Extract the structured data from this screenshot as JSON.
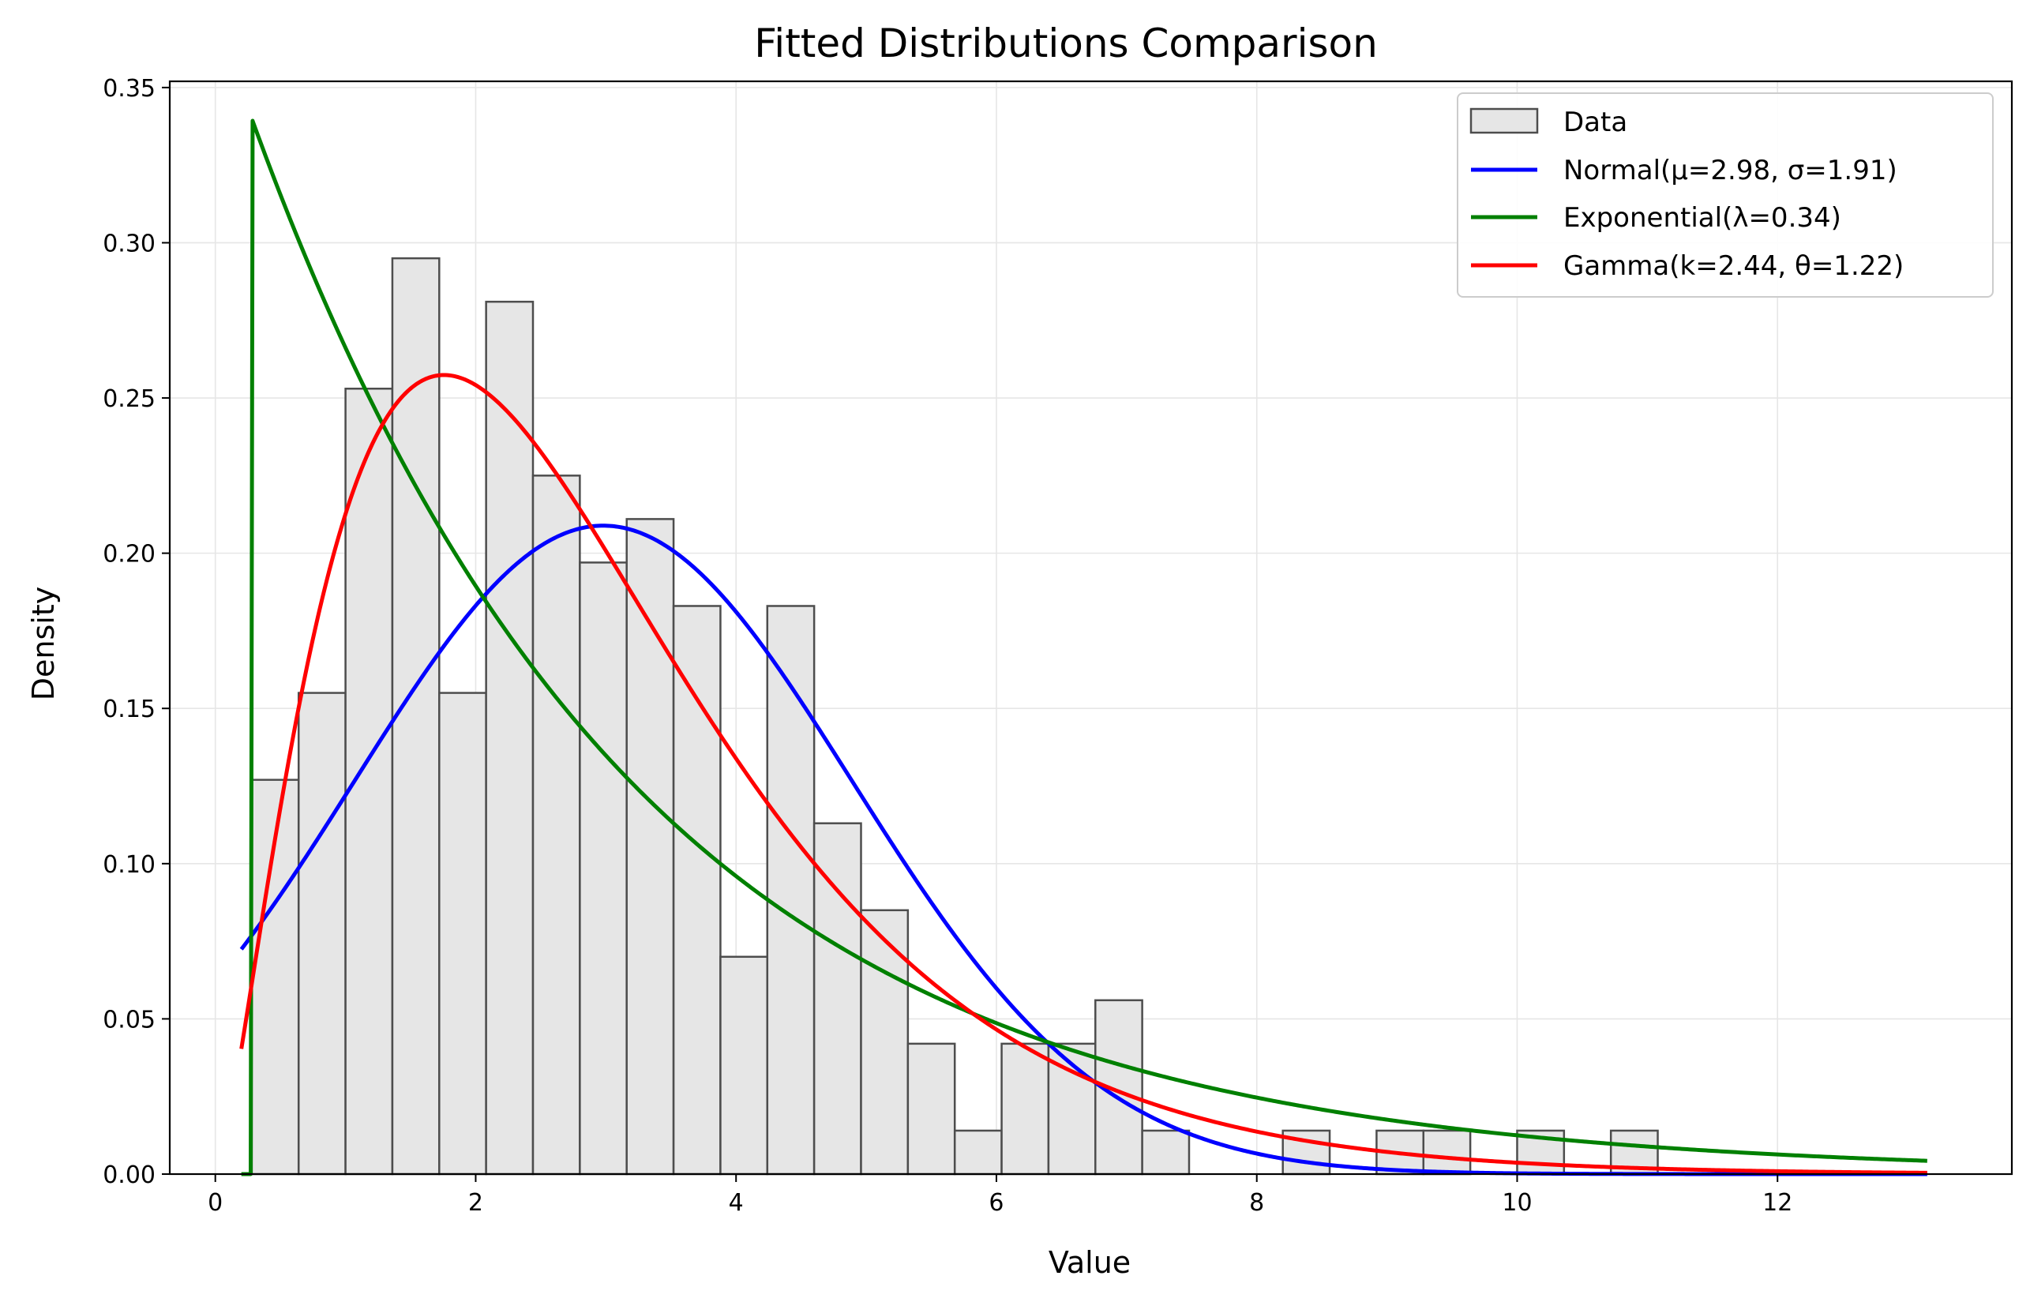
{
  "chart_data": {
    "type": "histogram",
    "title": "Fitted Distributions Comparison",
    "xlabel": "Value",
    "ylabel": "Density",
    "xlim": [
      -0.35,
      13.8
    ],
    "ylim": [
      0,
      0.352
    ],
    "x_ticks": [
      0,
      2,
      4,
      6,
      8,
      10,
      12
    ],
    "y_ticks": [
      0.0,
      0.05,
      0.1,
      0.15,
      0.2,
      0.25,
      0.3,
      0.35
    ],
    "x_tick_labels": [
      "0",
      "2",
      "4",
      "6",
      "8",
      "10",
      "12"
    ],
    "y_tick_labels": [
      "0.00",
      "0.05",
      "0.10",
      "0.15",
      "0.20",
      "0.25",
      "0.30",
      "0.35"
    ],
    "grid": true,
    "legend_position": "top-right",
    "colors": {
      "bar_fill": "#e6e6e6",
      "bar_edge": "#4d4d4d",
      "normal": "#0000ff",
      "exponential": "#008000",
      "gamma": "#ff0000",
      "grid": "#e6e6e6"
    },
    "histogram": {
      "name": "Data",
      "bin_width": 0.36,
      "bin_starts": [
        0.28,
        0.64,
        1.0,
        1.36,
        1.72,
        2.08,
        2.44,
        2.8,
        3.16,
        3.52,
        3.88,
        4.24,
        4.6,
        4.96,
        5.32,
        5.68,
        6.04,
        6.4,
        6.76,
        7.12,
        7.48,
        7.84,
        8.2,
        8.56,
        8.92,
        9.28,
        9.64,
        10.0,
        10.36,
        10.72
      ],
      "values": [
        0.127,
        0.155,
        0.253,
        0.295,
        0.155,
        0.281,
        0.225,
        0.197,
        0.211,
        0.183,
        0.07,
        0.183,
        0.113,
        0.085,
        0.042,
        0.014,
        0.042,
        0.042,
        0.056,
        0.014,
        0.0,
        0.0,
        0.014,
        0.0,
        0.014,
        0.014,
        0.0,
        0.014,
        0.0,
        0.014
      ]
    },
    "series": [
      {
        "name": "Normal(μ=2.98, σ=1.91)",
        "dist": "normal",
        "mu": 2.98,
        "sigma": 1.91,
        "x_range": [
          0.2,
          13.15
        ]
      },
      {
        "name": "Exponential(λ=0.34)",
        "dist": "exponential",
        "lambda": 0.34,
        "loc": 0.28,
        "x_range": [
          0.2,
          13.15
        ]
      },
      {
        "name": "Gamma(k=2.44, θ=1.22)",
        "dist": "gamma",
        "k": 2.44,
        "theta": 1.22,
        "loc": 0.0,
        "x_range": [
          0.2,
          13.15
        ]
      }
    ]
  }
}
